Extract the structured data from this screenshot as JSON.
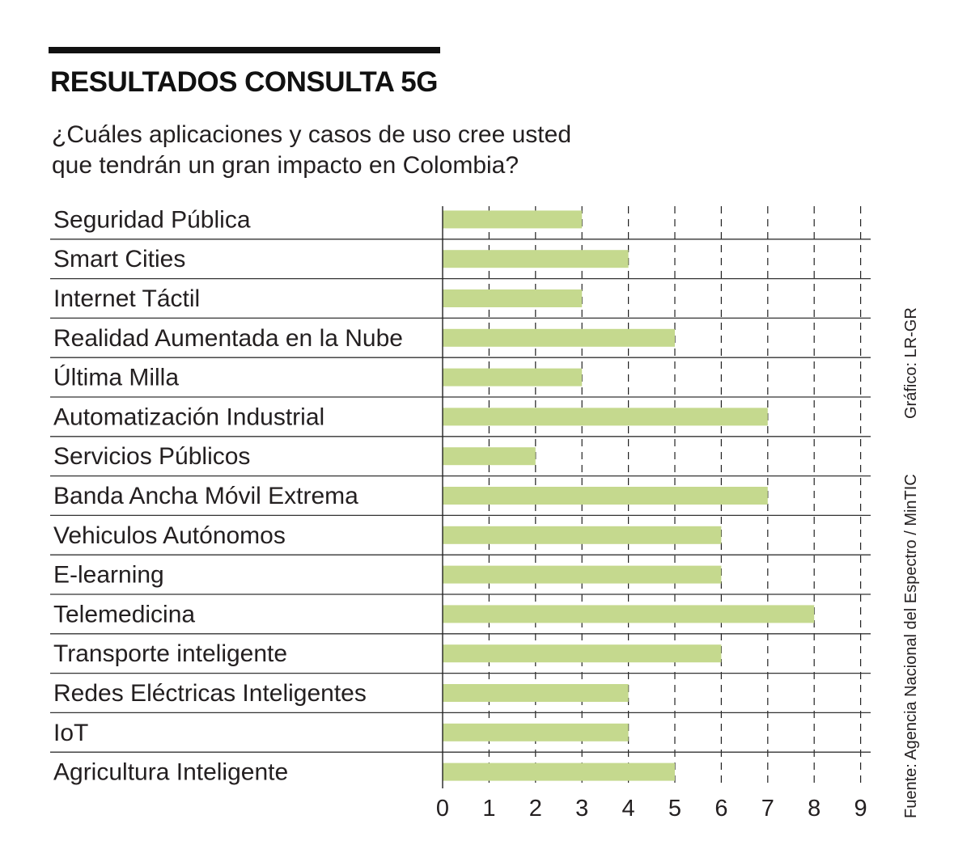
{
  "title": "RESULTADOS CONSULTA 5G",
  "subtitle_lines": [
    "¿Cuáles aplicaciones y casos de uso cree usted",
    "que tendrán un gran impacto en Colombia?"
  ],
  "credits": {
    "graphic": "Gráfico: LR-GR",
    "source": "Fuente: Agencia Nacional del Espectro / MinTIC"
  },
  "colors": {
    "bar": "#c5d98e",
    "row_line": "#333333",
    "grid": "#222222",
    "title_rule": "#111111",
    "text": "#231f20"
  },
  "chart_data": {
    "type": "bar",
    "orientation": "horizontal",
    "title": "RESULTADOS CONSULTA 5G",
    "subtitle": "¿Cuáles aplicaciones y casos de uso cree usted que tendrán un gran impacto en Colombia?",
    "categories": [
      "Seguridad Pública",
      "Smart Cities",
      "Internet Táctil",
      "Realidad Aumentada en la Nube",
      "Última Milla",
      "Automatización Industrial",
      "Servicios Públicos",
      "Banda Ancha Móvil Extrema",
      "Vehiculos Autónomos",
      "E-learning",
      "Telemedicina",
      "Transporte inteligente",
      "Redes Eléctricas Inteligentes",
      "IoT",
      "Agricultura Inteligente"
    ],
    "values": [
      3,
      4,
      3,
      5,
      3,
      7,
      2,
      7,
      6,
      6,
      8,
      6,
      4,
      4,
      5
    ],
    "xlim": [
      0,
      9
    ],
    "ticks": [
      "0",
      "1",
      "2",
      "3",
      "4",
      "5",
      "6",
      "7",
      "8",
      "9"
    ],
    "grid": "dashed vertical lines at each tick",
    "xlabel": "",
    "ylabel": ""
  }
}
